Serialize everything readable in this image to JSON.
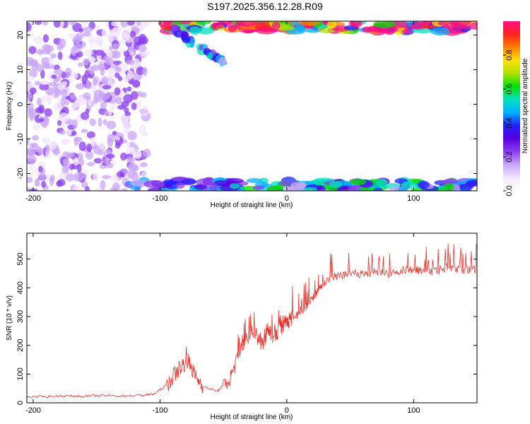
{
  "title": "S197.2025.356.12.28.R09",
  "colors": {
    "line": "#e8322c",
    "frame": "#000000",
    "colormap": [
      "#ffffff",
      "#f3e6ff",
      "#c9a6f7",
      "#8a3ef0",
      "#5a00e0",
      "#2020ff",
      "#00b0ff",
      "#00e0c0",
      "#00e000",
      "#b0e000",
      "#ffe000",
      "#ff8000",
      "#ff2020",
      "#ff1080"
    ]
  },
  "chart_data": [
    {
      "type": "heatmap",
      "xlabel": "Height of straight line (km)",
      "ylabel": "Frequency (Hz)",
      "xlim": [
        -205,
        150
      ],
      "ylim": [
        -25,
        24
      ],
      "xticks": [
        -200,
        -100,
        0,
        100
      ],
      "yticks": [
        -20,
        -10,
        0,
        10,
        20
      ],
      "colorbar": {
        "label": "Normalized spectral amplitude",
        "range": [
          0,
          1
        ],
        "ticks": [
          0.0,
          0.2,
          0.4,
          0.6,
          0.8
        ]
      },
      "features": [
        {
          "name": "scattered low-amplitude energy",
          "x_range": [
            -205,
            -110
          ],
          "freq_range": [
            -25,
            24
          ],
          "amplitude": 0.15
        },
        {
          "name": "upper band",
          "x_range": [
            -100,
            150
          ],
          "freq_range": [
            21,
            24
          ],
          "amplitude": 0.9
        },
        {
          "name": "lower band",
          "x_range": [
            -120,
            150
          ],
          "freq_range": [
            -25,
            -22
          ],
          "amplitude": 0.4
        },
        {
          "name": "descending streak",
          "x_range": [
            -90,
            -50
          ],
          "freq_range": [
            12,
            22
          ],
          "amplitude": 0.35
        }
      ]
    },
    {
      "type": "line",
      "xlabel": "Height of straight line (km)",
      "ylabel": "SNR (10 * v/v)",
      "xlim": [
        -205,
        150
      ],
      "ylim": [
        0,
        590
      ],
      "xticks": [
        -200,
        -100,
        0,
        100
      ],
      "yticks": [
        0,
        100,
        200,
        300,
        400,
        500
      ],
      "series": [
        {
          "x": [
            -205,
            -190,
            -175,
            -160,
            -145,
            -130,
            -115,
            -105,
            -95,
            -85,
            -78,
            -72,
            -65,
            -55,
            -45,
            -38,
            -32,
            -25,
            -20,
            -15,
            -10,
            -5,
            0,
            5,
            10,
            15,
            20,
            25,
            30,
            40,
            50,
            60,
            70,
            80,
            90,
            100,
            110,
            120,
            130,
            140,
            150
          ],
          "y": [
            20,
            22,
            24,
            23,
            25,
            24,
            26,
            30,
            60,
            120,
            150,
            90,
            55,
            40,
            80,
            170,
            220,
            250,
            200,
            240,
            230,
            260,
            280,
            300,
            310,
            330,
            360,
            390,
            420,
            440,
            450,
            445,
            455,
            450,
            460,
            465,
            455,
            460,
            470,
            460,
            465
          ]
        }
      ]
    }
  ]
}
